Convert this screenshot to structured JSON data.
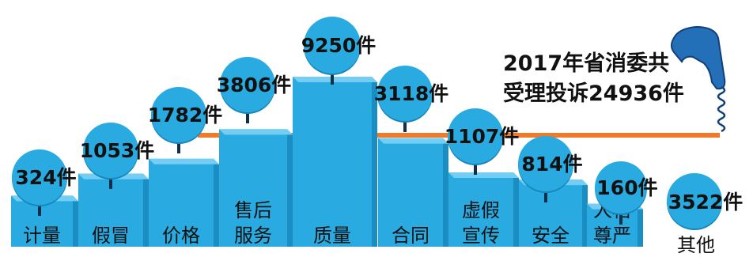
{
  "title": {
    "line1": "2017年省消委共",
    "line2": "受理投诉24936件"
  },
  "unit": "件",
  "colors": {
    "bar_front": "#29abe2",
    "bar_top": "#74cdf2",
    "bar_side": "#1a8ec2",
    "bubble": "#29abe2",
    "bubble_dark": "#1786bb",
    "line": "#f07a2a",
    "text": "#111111"
  },
  "icons": [
    "telephone-handset-icon"
  ],
  "chart_data": {
    "type": "bar",
    "title": "2017年省消委共受理投诉24936件",
    "categories": [
      [
        "计量"
      ],
      [
        "假冒"
      ],
      [
        "价格"
      ],
      [
        "售后",
        "服务"
      ],
      [
        "质量"
      ],
      [
        "合同"
      ],
      [
        "虚假",
        "宣传"
      ],
      [
        "安全"
      ],
      [
        "人格",
        "尊严"
      ]
    ],
    "values": [
      324,
      1053,
      1782,
      3806,
      9250,
      3118,
      1107,
      814,
      160
    ],
    "value_labels": [
      "324件",
      "1053件",
      "1782件",
      "3806件",
      "9250件",
      "3118件",
      "1107件",
      "814件",
      "160件"
    ],
    "other": {
      "label": "其他",
      "value": 3522,
      "value_label": "3522件"
    },
    "total": 24936
  }
}
